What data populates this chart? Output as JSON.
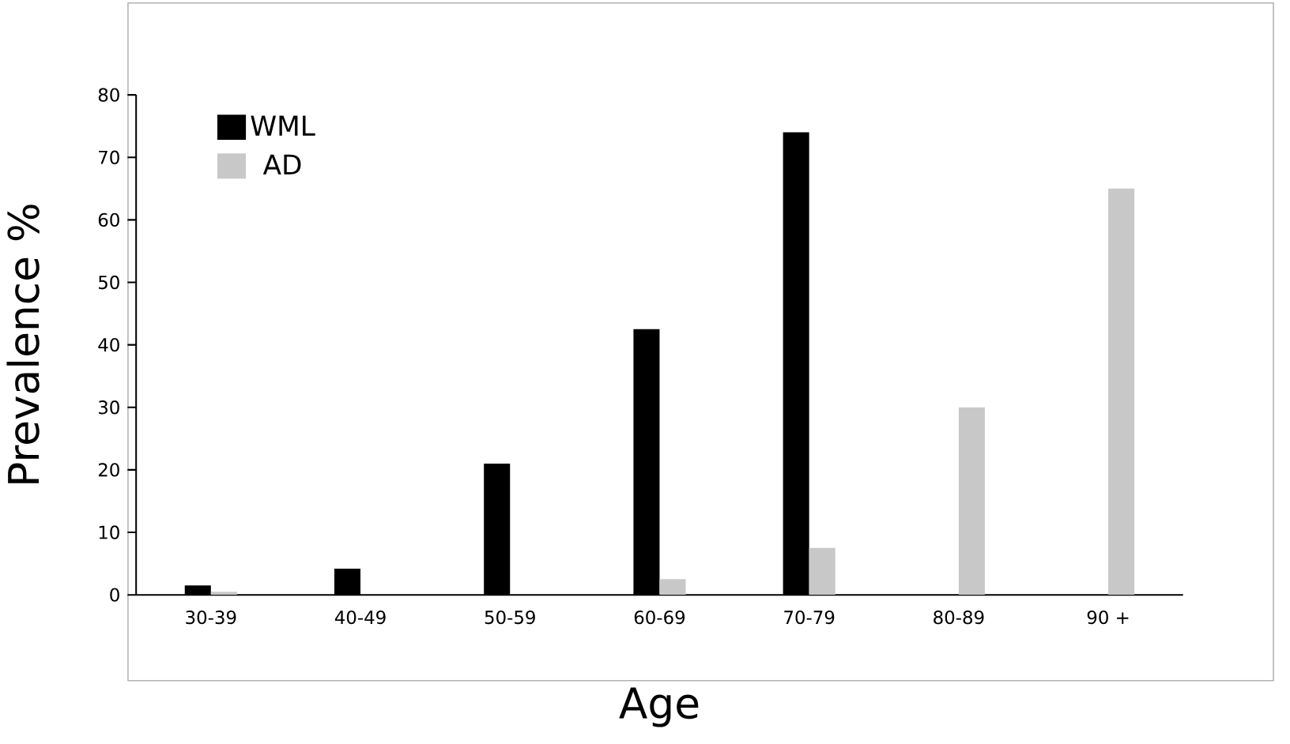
{
  "chart_data": {
    "type": "bar",
    "xlabel": "Age",
    "ylabel": "Prevalence %",
    "categories": [
      "30-39",
      "40-49",
      "50-59",
      "60-69",
      "70-79",
      "80-89",
      "90 +"
    ],
    "series": [
      {
        "name": "WML",
        "color": "#000000",
        "values": [
          1.5,
          4.2,
          21,
          42.5,
          74,
          null,
          null
        ]
      },
      {
        "name": "AD",
        "color": "#c8c8c8",
        "values": [
          0.5,
          null,
          null,
          2.5,
          7.5,
          30,
          65
        ]
      }
    ],
    "ylim": [
      0,
      80
    ],
    "yticks": [
      0,
      10,
      20,
      30,
      40,
      50,
      60,
      70,
      80
    ],
    "grid": false,
    "legend": "top left"
  }
}
